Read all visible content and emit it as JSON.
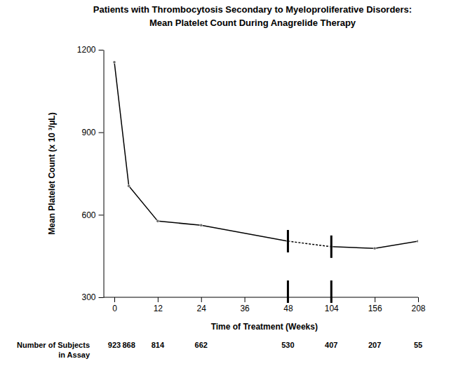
{
  "chart_data": {
    "type": "line",
    "title": "Patients with Thrombocytosis Secondary to Myeloproliferative Disorders:",
    "subtitle": "Mean Platelet Count During Anagrelide Therapy",
    "y_label": "Mean Platelet Count (x 10 ³/µL)",
    "x_label": "Time of Treatment (Weeks)",
    "x": [
      0,
      4,
      12,
      24,
      48,
      104,
      156,
      208
    ],
    "values": [
      1155,
      705,
      577,
      562,
      504,
      484,
      478,
      504
    ],
    "color": "#000000",
    "marker": "circle",
    "line_style": "solid",
    "xlim": [
      -3,
      208
    ],
    "xticks": [
      0,
      12,
      24,
      36,
      48,
      104,
      156,
      208
    ],
    "ylim": [
      300,
      1200
    ],
    "yticks": [
      300,
      600,
      900,
      1200
    ],
    "grid": false,
    "subjects_title": [
      "Number of Subjects",
      "in Assay"
    ],
    "subjects": [
      923,
      868,
      814,
      662,
      530,
      407,
      207,
      55
    ]
  }
}
